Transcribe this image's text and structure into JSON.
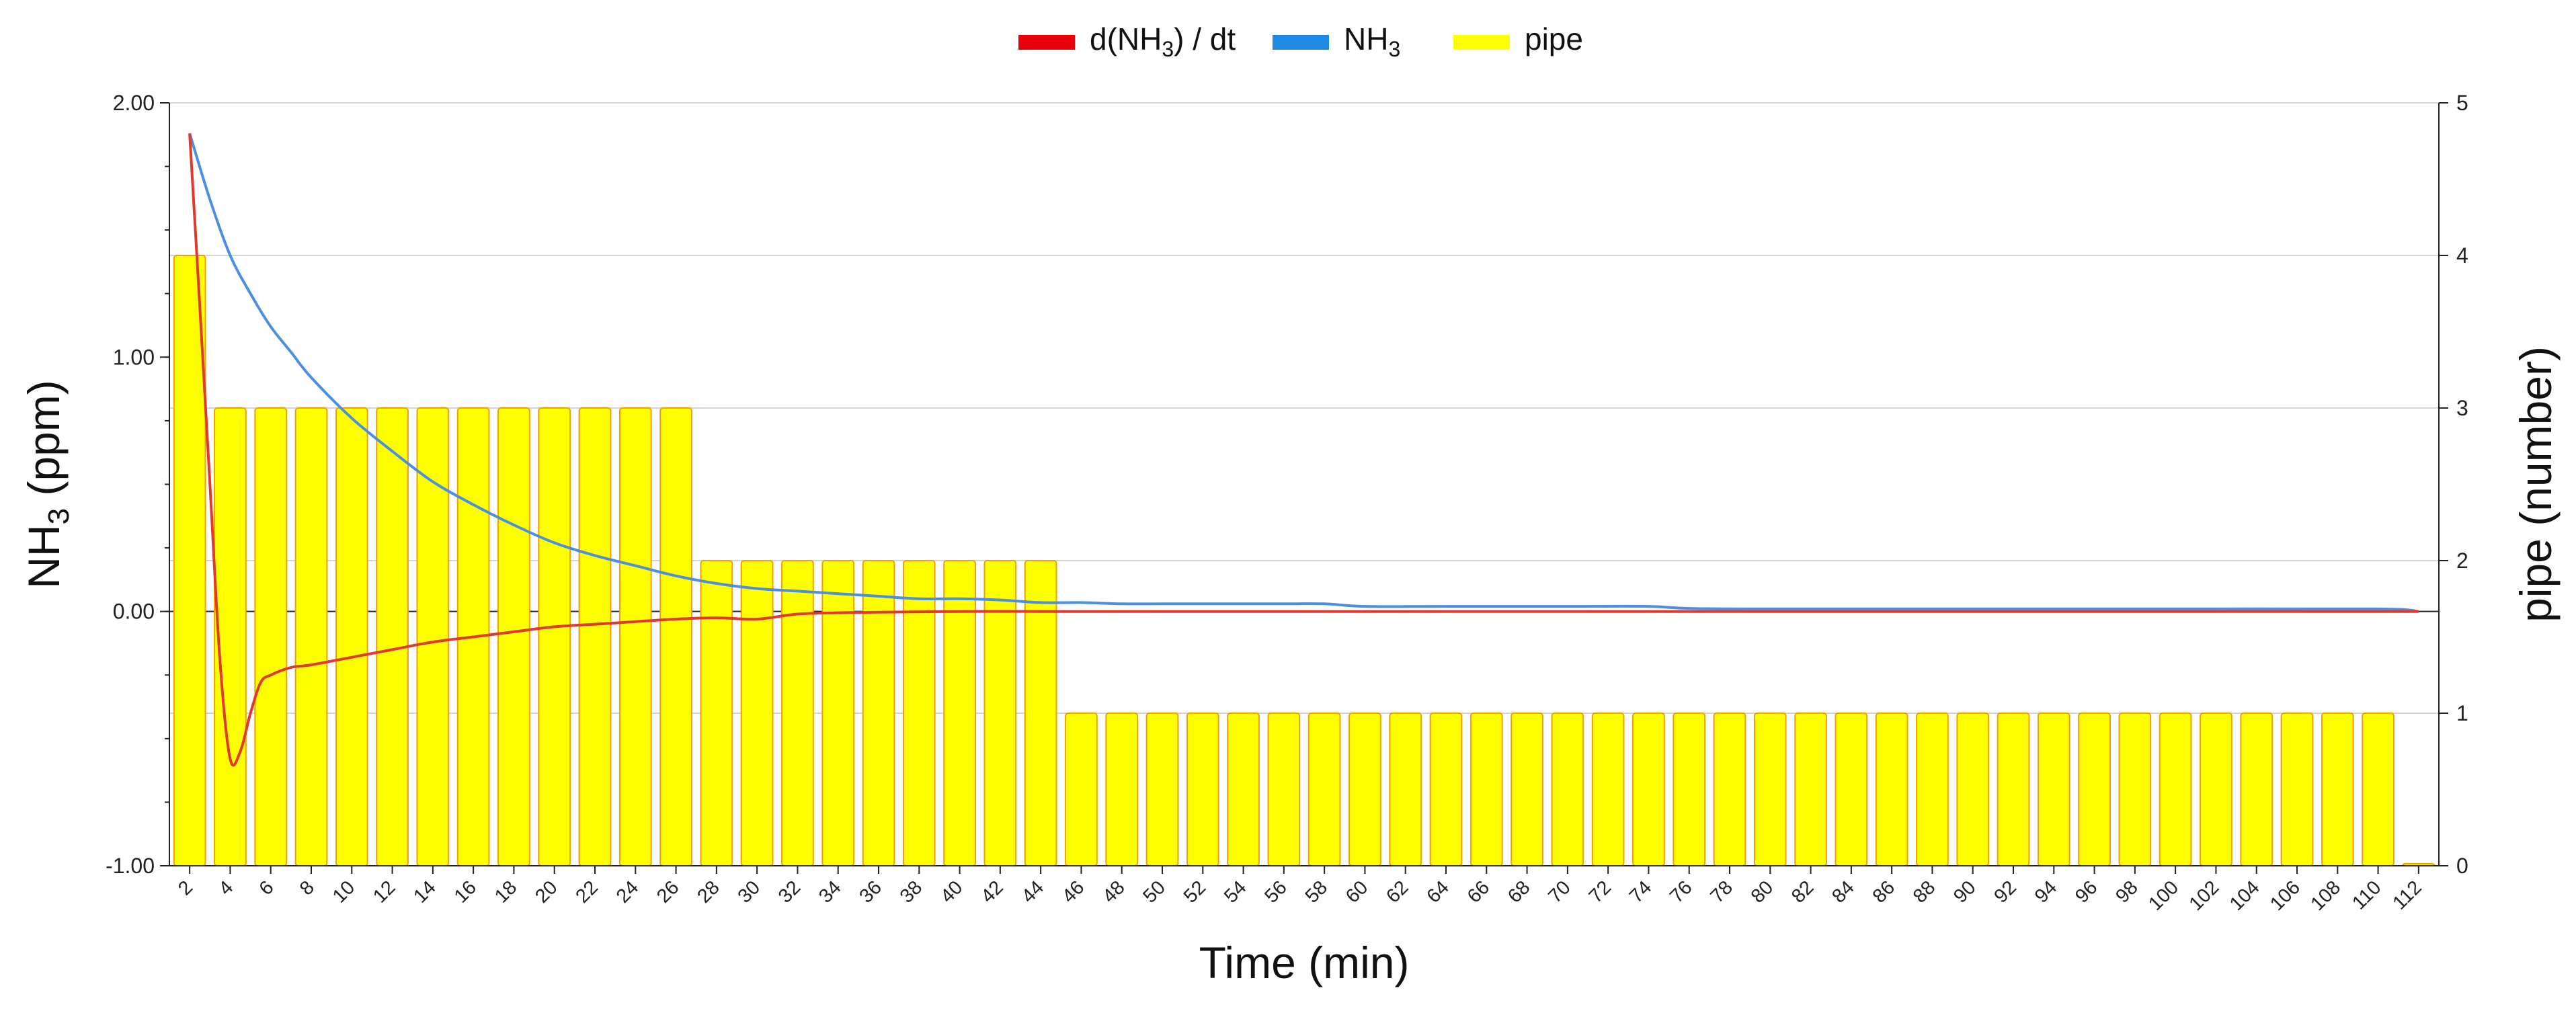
{
  "chart_data": {
    "type": "bar+line",
    "title": "",
    "x_axis": {
      "label": "Time (min)",
      "tick_step": 2,
      "range": [
        1,
        113
      ]
    },
    "y_left": {
      "label_main": "NH",
      "label_sub": "3",
      "label_unit": " (ppm)",
      "range": [
        -1.0,
        2.0
      ],
      "ticks": [
        "2.00",
        "1.00",
        "0.00",
        "-1.00"
      ],
      "tick_values": [
        2.0,
        1.0,
        0.0,
        -1.0
      ]
    },
    "y_right": {
      "label": "pipe (number)",
      "range": [
        0,
        5
      ],
      "ticks": [
        "0",
        "1",
        "2",
        "3",
        "4",
        "5"
      ]
    },
    "legend": {
      "placement": "top-center",
      "entries": [
        {
          "key": "dNH3",
          "text_pre": "d(NH",
          "text_sub": "3",
          "text_post": ") / dt",
          "color": "#e8000b"
        },
        {
          "key": "NH3",
          "text_pre": "NH",
          "text_sub": "3",
          "text_post": "",
          "color": "#1e88e5"
        },
        {
          "key": "pipe",
          "text_pre": "pipe",
          "text_sub": "",
          "text_post": "",
          "color": "#ffff00"
        }
      ]
    },
    "colors": {
      "nh3_line": "#4a8fe0",
      "dnh3_line": "#e03a2f",
      "bar_fill": "#ffff00",
      "bar_stroke": "#f0a000",
      "grid": "#d4d4d4"
    },
    "series": {
      "pipe": {
        "x": [
          2,
          4,
          6,
          8,
          10,
          12,
          14,
          16,
          18,
          20,
          22,
          24,
          26,
          28,
          30,
          32,
          34,
          36,
          38,
          40,
          42,
          44,
          46,
          48,
          50,
          52,
          54,
          56,
          58,
          60,
          62,
          64,
          66,
          68,
          70,
          72,
          74,
          76,
          78,
          80,
          82,
          84,
          86,
          88,
          90,
          92,
          94,
          96,
          98,
          100,
          102,
          104,
          106,
          108,
          110,
          112
        ],
        "values": [
          4,
          3,
          3,
          3,
          3,
          3,
          3,
          3,
          3,
          3,
          3,
          3,
          3,
          2,
          2,
          2,
          2,
          2,
          2,
          2,
          2,
          2,
          1,
          1,
          1,
          1,
          1,
          1,
          1,
          1,
          1,
          1,
          1,
          1,
          1,
          1,
          1,
          1,
          1,
          1,
          1,
          1,
          1,
          1,
          1,
          1,
          1,
          1,
          1,
          1,
          1,
          1,
          1,
          1,
          1,
          0
        ]
      },
      "NH3": {
        "x": [
          2,
          3,
          4,
          5,
          6,
          7,
          8,
          10,
          12,
          14,
          16,
          18,
          20,
          22,
          24,
          26,
          28,
          30,
          32,
          34,
          36,
          38,
          40,
          42,
          44,
          46,
          48,
          50,
          52,
          56,
          58,
          60,
          64,
          70,
          74,
          76,
          80,
          90,
          100,
          110,
          112
        ],
        "y": [
          1.88,
          1.62,
          1.4,
          1.25,
          1.12,
          1.02,
          0.92,
          0.76,
          0.63,
          0.51,
          0.42,
          0.34,
          0.27,
          0.22,
          0.18,
          0.14,
          0.11,
          0.09,
          0.08,
          0.07,
          0.06,
          0.05,
          0.05,
          0.045,
          0.035,
          0.035,
          0.03,
          0.03,
          0.03,
          0.03,
          0.03,
          0.02,
          0.02,
          0.02,
          0.02,
          0.012,
          0.01,
          0.01,
          0.01,
          0.01,
          0.0
        ]
      },
      "dNH3": {
        "x": [
          2,
          2.5,
          3,
          3.5,
          4,
          4.5,
          5,
          5.5,
          6,
          7,
          8,
          10,
          12,
          14,
          16,
          18,
          20,
          22,
          24,
          26,
          28,
          30,
          32,
          34,
          36,
          40,
          44,
          50,
          60,
          80,
          100,
          110,
          112
        ],
        "y": [
          1.88,
          1.2,
          0.5,
          -0.2,
          -0.58,
          -0.55,
          -0.4,
          -0.28,
          -0.25,
          -0.22,
          -0.21,
          -0.18,
          -0.15,
          -0.12,
          -0.1,
          -0.08,
          -0.06,
          -0.05,
          -0.04,
          -0.03,
          -0.025,
          -0.03,
          -0.01,
          -0.005,
          -0.003,
          0.0,
          0.0,
          0.0,
          0.0,
          0.0,
          0.0,
          0.0,
          0.0
        ]
      }
    }
  }
}
